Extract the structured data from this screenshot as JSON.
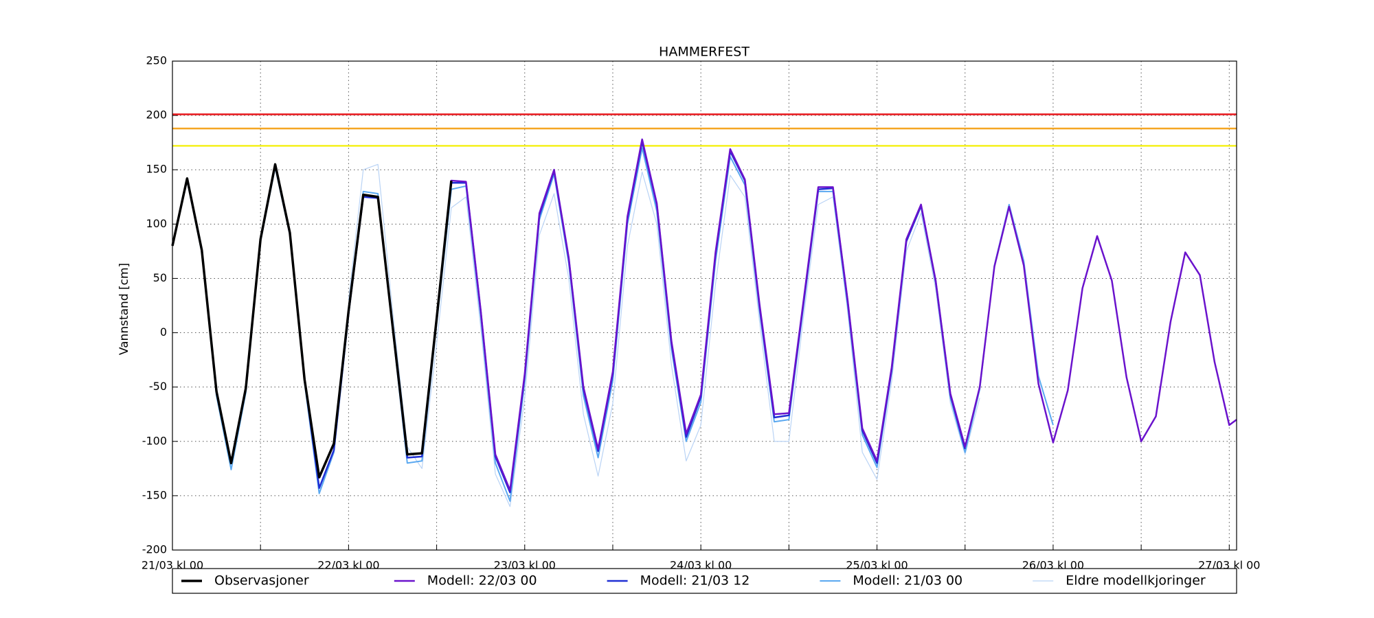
{
  "chart_data": {
    "type": "line",
    "title": "HAMMERFEST",
    "ylabel": "Vannstand [cm]",
    "xlim": [
      0,
      145
    ],
    "ylim": [
      -200,
      250
    ],
    "xticks": [
      {
        "value": 0,
        "label": "21/03 kl 00"
      },
      {
        "value": 24,
        "label": "22/03 kl 00"
      },
      {
        "value": 48,
        "label": "23/03 kl 00"
      },
      {
        "value": 72,
        "label": "24/03 kl 00"
      },
      {
        "value": 96,
        "label": "25/03 kl 00"
      },
      {
        "value": 120,
        "label": "26/03 kl 00"
      },
      {
        "value": 144,
        "label": "27/03 kl 00"
      }
    ],
    "xminor_ticks": [
      12,
      36,
      60,
      84,
      108,
      132
    ],
    "yticks": [
      -200,
      -150,
      -100,
      -50,
      0,
      50,
      100,
      150,
      200,
      250
    ],
    "grid": true,
    "legend": "below",
    "reference_lines": [
      {
        "value": 201,
        "color": "#e8161b"
      },
      {
        "value": 188,
        "color": "#f5a623"
      },
      {
        "value": 172,
        "color": "#f5f01a"
      }
    ],
    "series": [
      {
        "name": "Eldre modellkjoringer",
        "color": "#b9d3f5",
        "width": 1.2,
        "x": [
          24,
          26,
          28,
          30,
          32,
          34,
          36,
          38,
          40,
          42,
          44,
          46,
          48,
          50,
          52,
          54,
          56,
          58,
          60,
          62,
          64,
          66,
          68,
          70,
          72,
          74,
          76,
          78,
          80,
          82,
          84,
          86,
          88,
          90,
          92,
          94,
          96,
          98,
          100,
          102,
          104,
          106,
          108,
          110
        ],
        "values": [
          30,
          150,
          155,
          20,
          -105,
          -125,
          -10,
          115,
          125,
          5,
          -130,
          -160,
          -60,
          90,
          128,
          50,
          -75,
          -132,
          -65,
          80,
          148,
          100,
          -30,
          -118,
          -85,
          45,
          145,
          125,
          10,
          -100,
          -100,
          15,
          118,
          125,
          20,
          -110,
          -135,
          -45,
          75,
          110,
          40,
          -65,
          -112,
          -60
        ]
      },
      {
        "name": "Modell: 21/03 00",
        "color": "#5aa8f0",
        "width": 2,
        "x": [
          0,
          2,
          4,
          6,
          8,
          10,
          12,
          14,
          16,
          18,
          20,
          22,
          24,
          26,
          28,
          30,
          32,
          34,
          36,
          38,
          40,
          42,
          44,
          46,
          48,
          50,
          52,
          54,
          56,
          58,
          60,
          62,
          64,
          66,
          68,
          70,
          72,
          74,
          76,
          78,
          80,
          82,
          84,
          86,
          88,
          90,
          92,
          94,
          96,
          98,
          100,
          102,
          104,
          106,
          108,
          110,
          112,
          114,
          116,
          118,
          120
        ],
        "values": [
          80,
          140,
          74,
          -58,
          -126,
          -55,
          84,
          152,
          90,
          -46,
          -148,
          -110,
          16,
          130,
          128,
          3,
          -120,
          -118,
          8,
          132,
          135,
          15,
          -120,
          -155,
          -45,
          104,
          146,
          64,
          -58,
          -115,
          -44,
          100,
          170,
          112,
          -15,
          -100,
          -64,
          66,
          162,
          136,
          20,
          -82,
          -80,
          25,
          130,
          130,
          25,
          -94,
          -124,
          -36,
          84,
          116,
          46,
          -60,
          -110,
          -52,
          62,
          118,
          66,
          -40,
          -85
        ]
      },
      {
        "name": "Modell: 21/03 12",
        "color": "#1f2fd4",
        "width": 2.5,
        "x": [
          12,
          14,
          16,
          18,
          20,
          22,
          24,
          26,
          28,
          30,
          32,
          34,
          36,
          38,
          40,
          42,
          44,
          46,
          48,
          50,
          52,
          54,
          56,
          58,
          60,
          62,
          64,
          66,
          68,
          70,
          72,
          74,
          76,
          78,
          80,
          82,
          84,
          86,
          88,
          90,
          92,
          94,
          96,
          98,
          100,
          102,
          104,
          106,
          108
        ],
        "values": [
          86,
          155,
          92,
          -43,
          -143,
          -108,
          18,
          125,
          124,
          5,
          -115,
          -114,
          12,
          138,
          138,
          20,
          -114,
          -147,
          -40,
          108,
          149,
          68,
          -52,
          -109,
          -38,
          105,
          176,
          118,
          -10,
          -96,
          -59,
          72,
          167,
          140,
          24,
          -78,
          -76,
          28,
          132,
          133,
          29,
          -90,
          -120,
          -34,
          84,
          117,
          47,
          -57,
          -107
        ]
      },
      {
        "name": "Modell: 22/03 00",
        "color": "#6a12cc",
        "width": 2.5,
        "x": [
          36,
          38,
          40,
          42,
          44,
          46,
          48,
          50,
          52,
          54,
          56,
          58,
          60,
          62,
          64,
          66,
          68,
          70,
          72,
          74,
          76,
          78,
          80,
          82,
          84,
          86,
          88,
          90,
          92,
          94,
          96,
          98,
          100,
          102,
          104,
          106,
          108,
          110,
          112,
          114,
          116,
          118,
          120,
          122,
          124,
          126,
          128,
          130,
          132,
          134,
          136,
          138,
          140,
          142,
          144,
          145
        ],
        "values": [
          13,
          140,
          139,
          21,
          -112,
          -145,
          -38,
          110,
          150,
          69,
          -50,
          -107,
          -36,
          107,
          178,
          119,
          -8,
          -93,
          -57,
          74,
          169,
          141,
          26,
          -75,
          -74,
          30,
          134,
          134,
          30,
          -88,
          -118,
          -32,
          86,
          118,
          48,
          -56,
          -105,
          -50,
          61,
          116,
          62,
          -47,
          -101,
          -53,
          41,
          89,
          48,
          -41,
          -100,
          -77,
          10,
          74,
          53,
          -27,
          -85,
          -80
        ]
      },
      {
        "name": "Observasjoner",
        "color": "#000000",
        "width": 3.5,
        "x": [
          0,
          2,
          4,
          6,
          8,
          10,
          12,
          14,
          16,
          18,
          20,
          22,
          24,
          26,
          28,
          30,
          32,
          34,
          36,
          38
        ],
        "values": [
          80,
          142,
          76,
          -54,
          -120,
          -51,
          86,
          155,
          92,
          -43,
          -133,
          -102,
          20,
          127,
          125,
          6,
          -112,
          -111,
          13,
          140
        ]
      }
    ],
    "legend_order": [
      4,
      3,
      2,
      1,
      0
    ]
  }
}
